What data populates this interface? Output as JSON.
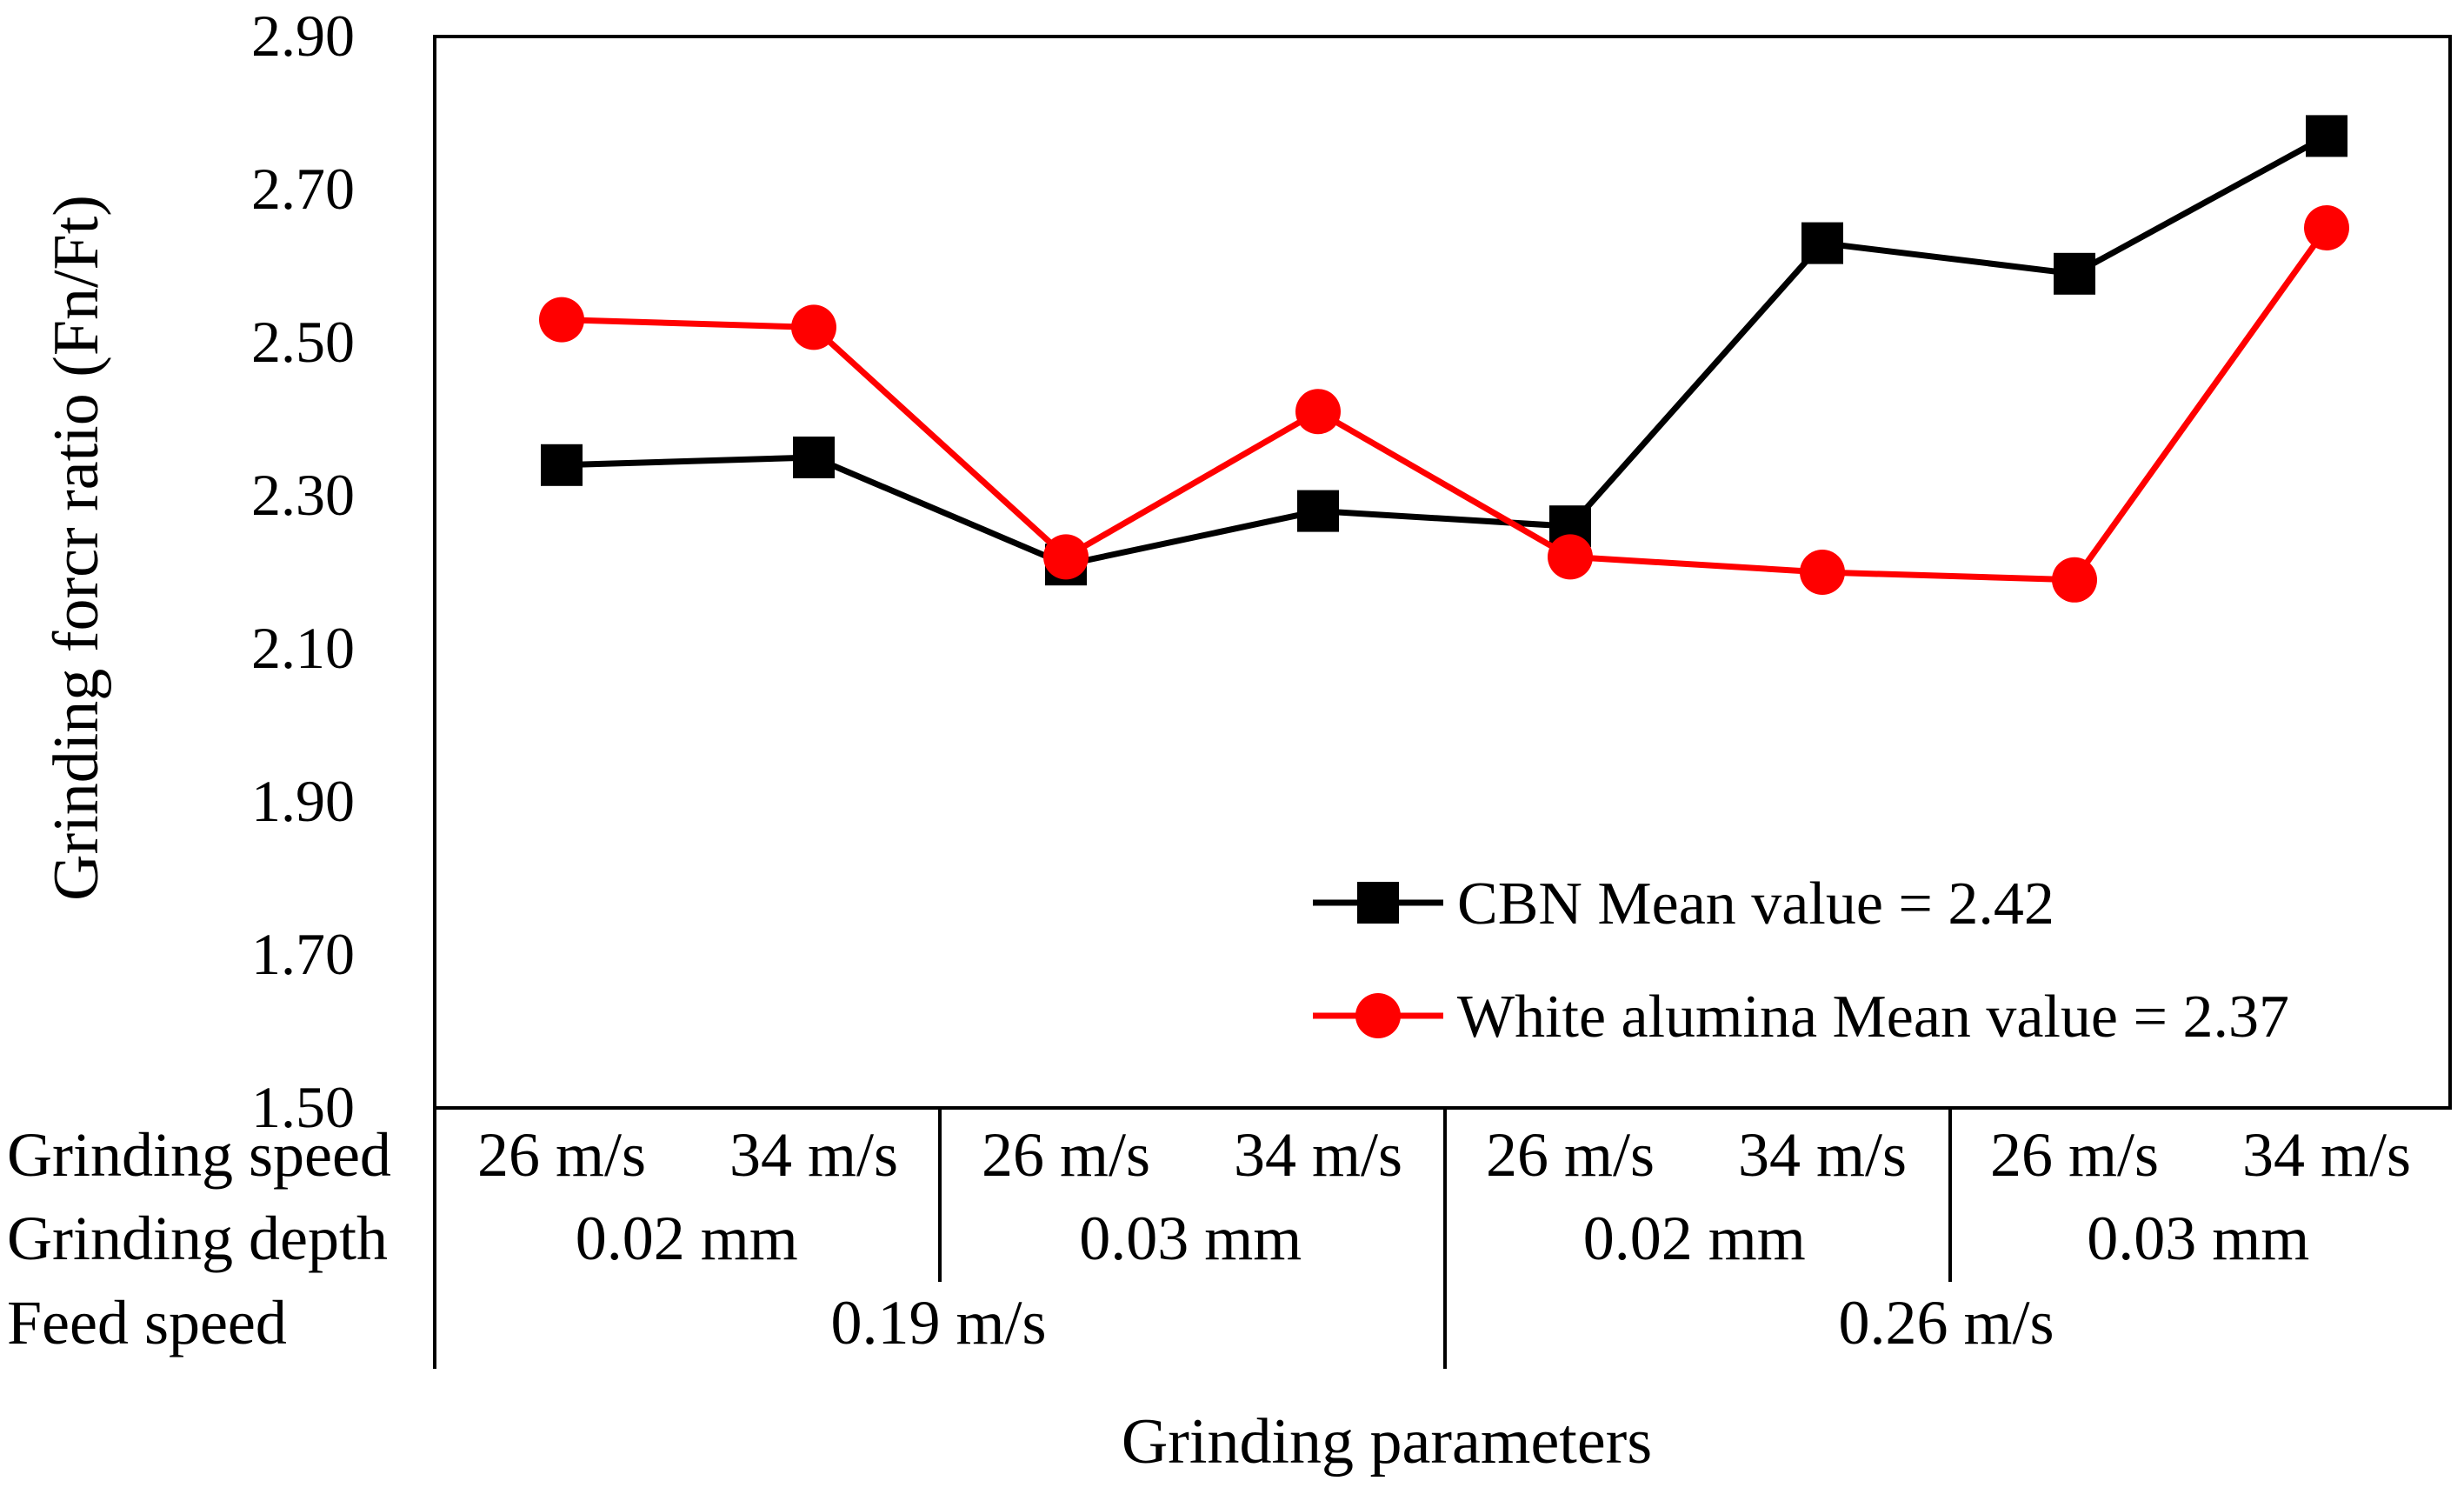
{
  "chart_data": {
    "type": "line",
    "title": "",
    "ylabel": "Grinding forcr ratio (Fn/Ft)",
    "xlabel": "Grinding parameters",
    "ylim": [
      1.5,
      2.9
    ],
    "yticks": [
      "1.50",
      "1.70",
      "1.90",
      "2.10",
      "2.30",
      "2.50",
      "2.70",
      "2.90"
    ],
    "grid": false,
    "legend_position": "bottom-right",
    "categories": [
      "26 m/s, 0.02 mm, 0.19 m/s",
      "34 m/s, 0.02 mm, 0.19 m/s",
      "26 m/s, 0.03 mm, 0.19 m/s",
      "34 m/s, 0.03 mm, 0.19 m/s",
      "26 m/s, 0.02 mm, 0.26 m/s",
      "34 m/s, 0.02 mm, 0.26 m/s",
      "26 m/s, 0.03 mm, 0.26 m/s",
      "34 m/s, 0.03 mm, 0.26 m/s"
    ],
    "series": [
      {
        "name": "CBN",
        "legend_label": "CBN  Mean value = 2.42",
        "color": "#000000",
        "marker": "square",
        "values": [
          2.34,
          2.35,
          2.21,
          2.28,
          2.26,
          2.63,
          2.59,
          2.77
        ]
      },
      {
        "name": "White alumina",
        "legend_label": "White alumina  Mean value = 2.37",
        "color": "#ff0000",
        "marker": "circle",
        "values": [
          2.53,
          2.52,
          2.22,
          2.41,
          2.22,
          2.2,
          2.19,
          2.65
        ]
      }
    ],
    "param_table": {
      "rows": [
        {
          "label": "Grinding speed",
          "cells": [
            "26 m/s",
            "34 m/s",
            "26 m/s",
            "34 m/s",
            "26 m/s",
            "34 m/s",
            "26 m/s",
            "34 m/s"
          ]
        },
        {
          "label": "Grinding depth",
          "cells": [
            "0.02 mm",
            "0.03 mm",
            "0.02 mm",
            "0.03 mm"
          ]
        },
        {
          "label": "Feed speed",
          "cells": [
            "0.19 m/s",
            "0.26 m/s"
          ]
        }
      ]
    }
  }
}
